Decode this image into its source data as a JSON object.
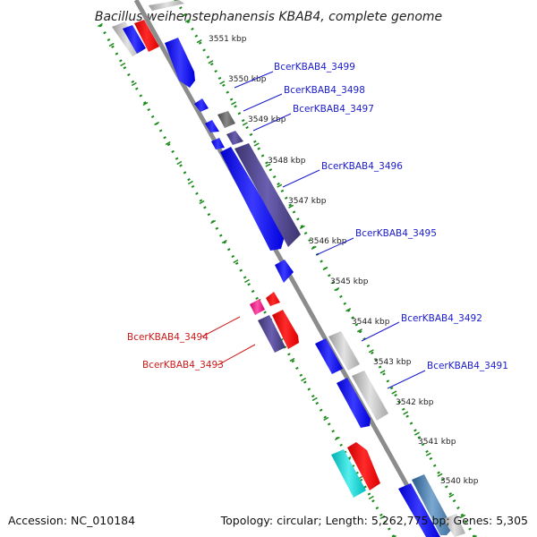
{
  "header": {
    "title": "Bacillus weihenstephanensis KBAB4, complete genome"
  },
  "footer": {
    "accession": "Accession: NC_010184",
    "summary": "Topology: circular; Length: 5,262,775 bp; Genes: 5,305"
  },
  "map": {
    "backbone_color": "#8c8c8c",
    "tick_color": "#1a8a1a",
    "kbp_labels": [
      "3551 kbp",
      "3550 kbp",
      "3549 kbp",
      "3548 kbp",
      "3547 kbp",
      "3546 kbp",
      "3545 kbp",
      "3544 kbp",
      "3543 kbp",
      "3542 kbp",
      "3541 kbp",
      "3540 kbp"
    ],
    "gene_labels": [
      {
        "text": "BcerKBAB4_3499",
        "color": "#1a1acc"
      },
      {
        "text": "BcerKBAB4_3498",
        "color": "#1a1acc"
      },
      {
        "text": "BcerKBAB4_3497",
        "color": "#1a1acc"
      },
      {
        "text": "BcerKBAB4_3496",
        "color": "#1a1acc"
      },
      {
        "text": "BcerKBAB4_3495",
        "color": "#1a1acc"
      },
      {
        "text": "BcerKBAB4_3492",
        "color": "#1a1acc"
      },
      {
        "text": "BcerKBAB4_3491",
        "color": "#1a1acc"
      },
      {
        "text": "BcerKBAB4_3494",
        "color": "#cc1a1a"
      },
      {
        "text": "BcerKBAB4_3493",
        "color": "#cc1a1a"
      }
    ]
  }
}
